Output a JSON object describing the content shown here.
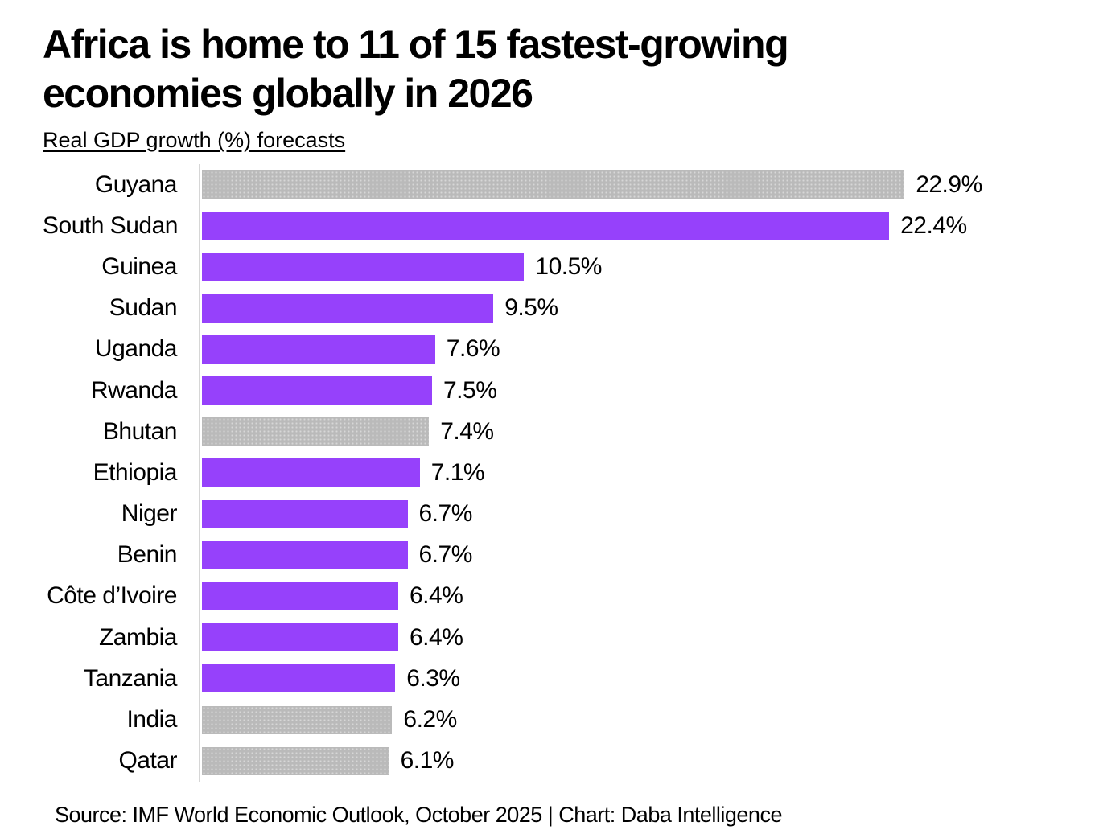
{
  "header": {
    "title": "Africa is home to 11 of 15 fastest-growing economies globally in 2026",
    "subtitle": "Real GDP growth (%) forecasts"
  },
  "footer": {
    "source": "Source: IMF World Economic Outlook, October 2025 | Chart: Daba Intelligence"
  },
  "colors": {
    "africa": "#9641fb",
    "other": "#bababa",
    "other_dots": "#d7d7d7",
    "axis": "#d6d6d6"
  },
  "chart_data": {
    "type": "bar",
    "orientation": "horizontal",
    "title": "Africa is home to 11 of 15 fastest-growing economies globally in 2026",
    "subtitle": "Real GDP growth (%) forecasts",
    "xlabel": "Real GDP growth (%)",
    "ylabel": "",
    "xlim": [
      0,
      24
    ],
    "grid": false,
    "legend": "none",
    "unit": "%",
    "categories": [
      "Guyana",
      "South Sudan",
      "Guinea",
      "Sudan",
      "Uganda",
      "Rwanda",
      "Bhutan",
      "Ethiopia",
      "Niger",
      "Benin",
      "Côte d’Ivoire",
      "Zambia",
      "Tanzania",
      "India",
      "Qatar"
    ],
    "values": [
      22.9,
      22.4,
      10.5,
      9.5,
      7.6,
      7.5,
      7.4,
      7.1,
      6.7,
      6.7,
      6.4,
      6.4,
      6.3,
      6.2,
      6.1
    ],
    "labels": [
      "22.9%",
      "22.4%",
      "10.5%",
      "9.5%",
      "7.6%",
      "7.5%",
      "7.4%",
      "7.1%",
      "6.7%",
      "6.7%",
      "6.4%",
      "6.4%",
      "6.3%",
      "6.2%",
      "6.1%"
    ],
    "groups": [
      "other",
      "africa",
      "africa",
      "africa",
      "africa",
      "africa",
      "other",
      "africa",
      "africa",
      "africa",
      "africa",
      "africa",
      "africa",
      "other",
      "other"
    ]
  }
}
